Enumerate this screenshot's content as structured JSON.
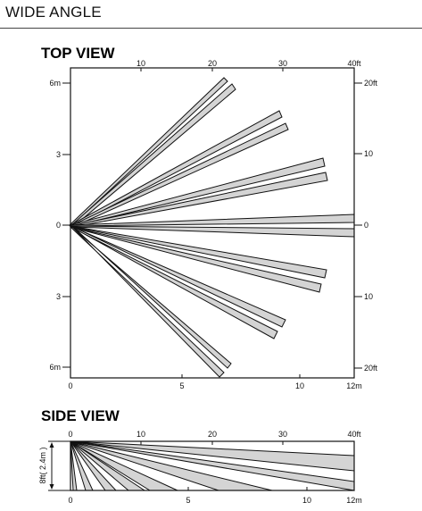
{
  "header": {
    "title": "WIDE ANGLE"
  },
  "top_view": {
    "title": "TOP VIEW",
    "top_axis_labels": [
      "10",
      "20",
      "30",
      "40ft"
    ],
    "bottom_axis_labels": [
      "0",
      "5",
      "10",
      "12m"
    ],
    "left_axis_labels": [
      "6m",
      "3",
      "0",
      "3",
      "6m"
    ],
    "right_axis_labels": [
      "20ft",
      "10",
      "0",
      "10",
      "20ft"
    ]
  },
  "side_view": {
    "title": "SIDE VIEW",
    "top_axis_labels": [
      "0",
      "10",
      "20",
      "30",
      "40ft"
    ],
    "bottom_axis_labels": [
      "0",
      "5",
      "10",
      "12m"
    ],
    "height_label": "8ft( 2.4m )"
  },
  "colors": {
    "beam_fill": "#d4d4d4",
    "stroke": "#111111"
  }
}
